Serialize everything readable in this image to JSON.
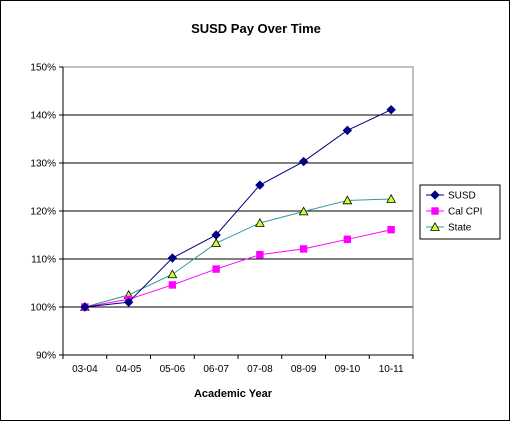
{
  "chart_data": {
    "type": "line",
    "title": "SUSD Pay Over Time",
    "xlabel": "Academic Year",
    "ylabel": "",
    "categories": [
      "03-04",
      "04-05",
      "05-06",
      "06-07",
      "07-08",
      "08-09",
      "09-10",
      "10-11"
    ],
    "ylim": [
      90,
      150
    ],
    "yticks": [
      90,
      100,
      110,
      120,
      130,
      140,
      150
    ],
    "ytick_labels": [
      "90%",
      "100%",
      "110%",
      "120%",
      "130%",
      "140%",
      "150%"
    ],
    "grid": "horizontal",
    "legend_position": "right",
    "series": [
      {
        "name": "SUSD",
        "values": [
          100,
          101,
          110.2,
          115,
          125.4,
          130.3,
          136.8,
          141.1
        ],
        "color": "#000080",
        "marker": "diamond"
      },
      {
        "name": "Cal CPI",
        "values": [
          100,
          101.6,
          104.6,
          107.9,
          110.9,
          112.1,
          114.1,
          116.1
        ],
        "color": "#ff00ff",
        "marker": "square"
      },
      {
        "name": "State",
        "values": [
          100,
          102.5,
          106.8,
          113.3,
          117.5,
          119.9,
          122.2,
          122.5
        ],
        "color": "#339999",
        "marker_fill": "#ccff33",
        "marker": "triangle"
      }
    ]
  }
}
